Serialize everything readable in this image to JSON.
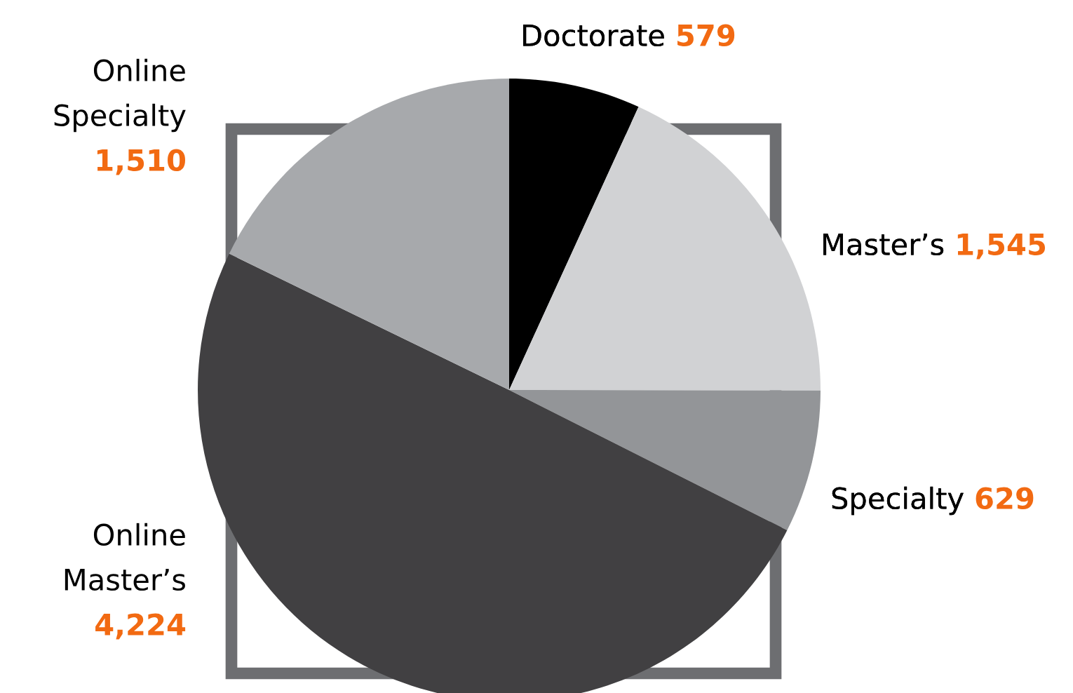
{
  "chart_data": {
    "type": "pie",
    "categories": [
      "Doctorate",
      "Master’s",
      "Specialty",
      "Online Master’s",
      "Online Specialty"
    ],
    "values": [
      579,
      1545,
      629,
      4224,
      1510
    ],
    "value_labels": [
      "579",
      "1,545",
      "629",
      "4,224",
      "1,510"
    ],
    "colors": [
      "#000000",
      "#d1d2d4",
      "#939598",
      "#414042",
      "#a7a9ac"
    ]
  }
}
